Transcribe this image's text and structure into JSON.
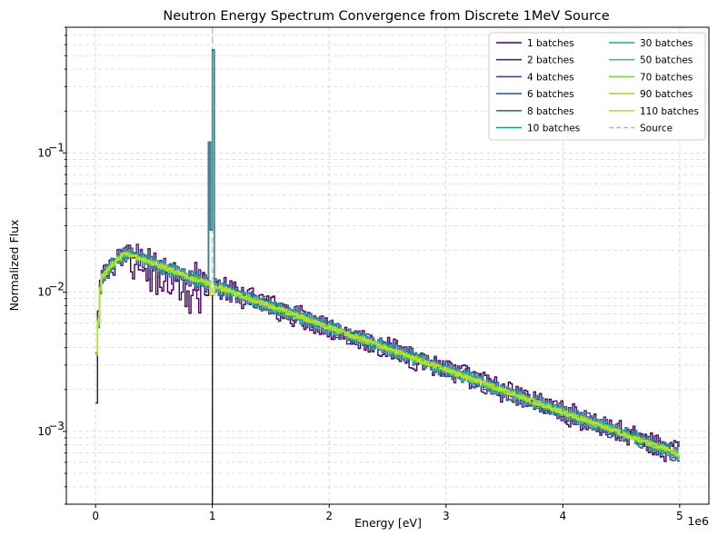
{
  "chart_data": {
    "type": "line",
    "title": "Neutron Energy Spectrum Convergence from Discrete 1MeV Source",
    "xlabel": "Energy [eV]",
    "ylabel": "Normalized Flux",
    "x_offset_label": "1e6",
    "x_tick_labels": [
      "0",
      "1",
      "2",
      "3",
      "4",
      "5"
    ],
    "y_tick_labels": [
      {
        "base": "10",
        "exp": "−3"
      },
      {
        "base": "10",
        "exp": "−2"
      },
      {
        "base": "10",
        "exp": "−1"
      }
    ],
    "xlim": [
      -0.25,
      5.25
    ],
    "ylog": true,
    "ylim": [
      0.0003,
      0.8
    ],
    "grid": true,
    "legend_position": "top-right",
    "legend_columns": 2,
    "series": [
      {
        "name": "1 batches",
        "color": "#440154",
        "pattern": [
          0,
          -0.7,
          -0.4,
          -0.95,
          -0.7,
          -0.35,
          0.15,
          -0.5,
          -0.75,
          -0.3,
          0.1,
          -0.5,
          0.3,
          -0.8,
          -0.2
        ],
        "dip_scale": 2.3,
        "noise": 0.16
      },
      {
        "name": "2 batches",
        "color": "#482475",
        "pattern": [
          0,
          -0.4,
          0.2,
          -0.55,
          -0.3,
          0.15,
          -0.45,
          0.3,
          -0.2,
          0.25,
          -0.6,
          0.1
        ],
        "dip_scale": 1.3,
        "noise": 0.13
      },
      {
        "name": "4 batches",
        "color": "#414487",
        "pattern": [
          0,
          0.35,
          -0.4,
          0.1,
          -0.3,
          0.45,
          -0.5,
          0.2,
          -0.15,
          0.3,
          -0.35
        ],
        "dip_scale": 0.4,
        "noise": 0.11
      },
      {
        "name": "6 batches",
        "color": "#355f8d",
        "pattern": [
          0,
          -0.3,
          0.4,
          -0.2,
          0.25,
          -0.45,
          0.1,
          0.3,
          -0.4,
          0.15
        ],
        "dip_scale": 0.2,
        "noise": 0.1
      },
      {
        "name": "8 batches",
        "color": "#2a788e",
        "pattern": [
          0,
          0.3,
          -0.35,
          0.2,
          -0.15,
          0.4,
          -0.3,
          0.1,
          -0.25
        ],
        "dip_scale": 0.1,
        "noise": 0.09
      },
      {
        "name": "10 batches",
        "color": "#21918c",
        "pattern": [
          0,
          -0.25,
          0.3,
          -0.35,
          0.15,
          -0.1,
          0.35,
          -0.3
        ],
        "dip_scale": 0.05,
        "noise": 0.08
      },
      {
        "name": "30 batches",
        "color": "#22a884",
        "pattern": [
          0,
          0.2,
          -0.25,
          0.15,
          -0.2,
          0.25,
          -0.1
        ],
        "dip_scale": 0,
        "noise": 0.05
      },
      {
        "name": "50 batches",
        "color": "#44bf70",
        "pattern": [
          0,
          -0.2,
          0.2,
          -0.15,
          0.25,
          -0.2
        ],
        "dip_scale": 0,
        "noise": 0.04
      },
      {
        "name": "70 batches",
        "color": "#7ad151",
        "pattern": [
          0,
          0.2,
          -0.2,
          0.1,
          -0.25
        ],
        "dip_scale": 0,
        "noise": 0.035
      },
      {
        "name": "90 batches",
        "color": "#a2d93c",
        "pattern": [
          0,
          -0.2,
          0.25,
          -0.15
        ],
        "dip_scale": 0,
        "noise": 0.03
      },
      {
        "name": "110 batches",
        "color": "#bddf26",
        "pattern": [
          0,
          0.2,
          -0.2
        ],
        "dip_scale": 0,
        "noise": 0.025
      }
    ],
    "source_marker": {
      "name": "Source",
      "x": 1.0,
      "color": "#b0b0dd"
    }
  }
}
